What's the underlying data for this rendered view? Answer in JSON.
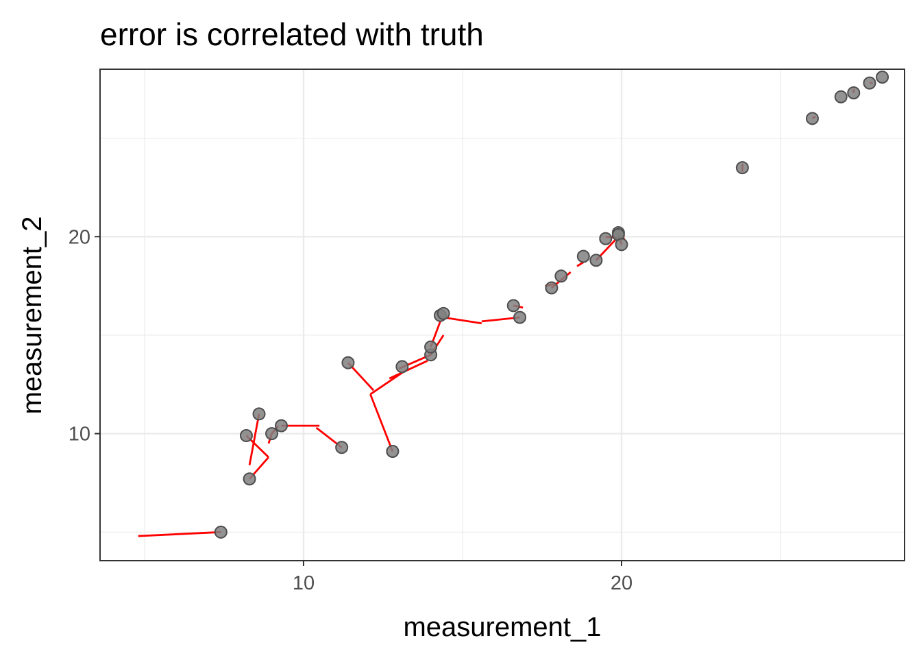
{
  "chart_data": {
    "type": "scatter",
    "title": "error is correlated with truth",
    "xlabel": "measurement_1",
    "ylabel": "measurement_2",
    "xlim": [
      3.6,
      28.9
    ],
    "ylim": [
      3.55,
      28.5
    ],
    "x_major_ticks": [
      10,
      20
    ],
    "y_major_ticks": [
      10,
      20
    ],
    "x_minor_ticks": [
      5,
      15,
      25
    ],
    "y_minor_ticks": [
      5,
      15,
      25
    ],
    "x_tick_labels": [
      "10",
      "20"
    ],
    "y_tick_labels": [
      "10",
      "20"
    ],
    "grid": true,
    "point_color": "#808080",
    "segment_color": "#ff0000",
    "points": [
      {
        "x": 7.4,
        "y": 5.0
      },
      {
        "x": 8.2,
        "y": 9.9
      },
      {
        "x": 8.3,
        "y": 7.7
      },
      {
        "x": 8.6,
        "y": 11.0
      },
      {
        "x": 9.0,
        "y": 10.0
      },
      {
        "x": 9.3,
        "y": 10.4
      },
      {
        "x": 11.2,
        "y": 9.3
      },
      {
        "x": 11.4,
        "y": 13.6
      },
      {
        "x": 12.8,
        "y": 9.1
      },
      {
        "x": 13.1,
        "y": 13.4
      },
      {
        "x": 14.0,
        "y": 14.0
      },
      {
        "x": 14.0,
        "y": 14.4
      },
      {
        "x": 14.3,
        "y": 16.0
      },
      {
        "x": 14.4,
        "y": 16.1
      },
      {
        "x": 16.6,
        "y": 16.5
      },
      {
        "x": 16.8,
        "y": 15.9
      },
      {
        "x": 17.8,
        "y": 17.4
      },
      {
        "x": 18.1,
        "y": 18.0
      },
      {
        "x": 18.8,
        "y": 19.0
      },
      {
        "x": 19.2,
        "y": 18.8
      },
      {
        "x": 19.5,
        "y": 19.9
      },
      {
        "x": 19.9,
        "y": 20.2
      },
      {
        "x": 19.9,
        "y": 20.1
      },
      {
        "x": 20.0,
        "y": 19.6
      },
      {
        "x": 23.8,
        "y": 23.5
      },
      {
        "x": 26.0,
        "y": 26.0
      },
      {
        "x": 26.9,
        "y": 27.1
      },
      {
        "x": 27.3,
        "y": 27.3
      },
      {
        "x": 27.8,
        "y": 27.8
      },
      {
        "x": 28.2,
        "y": 28.1
      }
    ],
    "segments": [
      {
        "x1": 7.4,
        "y1": 5.0,
        "x2": 4.8,
        "y2": 4.8
      },
      {
        "x1": 8.2,
        "y1": 9.9,
        "x2": 8.9,
        "y2": 8.8
      },
      {
        "x1": 8.3,
        "y1": 7.7,
        "x2": 8.9,
        "y2": 8.8
      },
      {
        "x1": 8.6,
        "y1": 11.0,
        "x2": 8.3,
        "y2": 8.4
      },
      {
        "x1": 9.0,
        "y1": 10.0,
        "x2": 9.2,
        "y2": 10.4
      },
      {
        "x1": 9.0,
        "y1": 10.0,
        "x2": 8.9,
        "y2": 9.5
      },
      {
        "x1": 9.3,
        "y1": 10.4,
        "x2": 10.5,
        "y2": 10.4
      },
      {
        "x1": 11.2,
        "y1": 9.3,
        "x2": 10.4,
        "y2": 10.3
      },
      {
        "x1": 11.4,
        "y1": 13.6,
        "x2": 12.2,
        "y2": 12.2
      },
      {
        "x1": 12.8,
        "y1": 9.1,
        "x2": 12.1,
        "y2": 12.0
      },
      {
        "x1": 12.1,
        "y1": 12.0,
        "x2": 13.2,
        "y2": 13.2
      },
      {
        "x1": 12.7,
        "y1": 12.8,
        "x2": 13.9,
        "y2": 13.7
      },
      {
        "x1": 14.0,
        "y1": 14.0,
        "x2": 13.0,
        "y2": 13.3
      },
      {
        "x1": 14.0,
        "y1": 14.4,
        "x2": 14.3,
        "y2": 15.7
      },
      {
        "x1": 14.0,
        "y1": 14.0,
        "x2": 14.4,
        "y2": 15.0
      },
      {
        "x1": 14.4,
        "y1": 15.9,
        "x2": 15.6,
        "y2": 15.6
      },
      {
        "x1": 16.8,
        "y1": 15.9,
        "x2": 15.6,
        "y2": 15.7
      },
      {
        "x1": 16.6,
        "y1": 16.5,
        "x2": 16.9,
        "y2": 16.4
      },
      {
        "x1": 17.8,
        "y1": 17.4,
        "x2": 18.4,
        "y2": 18.2
      },
      {
        "x1": 17.6,
        "y1": 17.5,
        "x2": 17.9,
        "y2": 17.6
      },
      {
        "x1": 18.6,
        "y1": 18.5,
        "x2": 18.8,
        "y2": 18.7
      },
      {
        "x1": 19.2,
        "y1": 18.8,
        "x2": 19.9,
        "y2": 20.0
      },
      {
        "x1": 19.5,
        "y1": 20.0,
        "x2": 20.1,
        "y2": 19.9
      },
      {
        "x1": 19.9,
        "y1": 20.2,
        "x2": 20.0,
        "y2": 19.6
      },
      {
        "x1": 23.8,
        "y1": 23.3,
        "x2": 23.8,
        "y2": 23.7
      },
      {
        "x1": 26.0,
        "y1": 26.0,
        "x2": 26.1,
        "y2": 26.1
      },
      {
        "x1": 27.3,
        "y1": 27.3,
        "x2": 27.3,
        "y2": 27.5
      },
      {
        "x1": 27.8,
        "y1": 27.8,
        "x2": 27.9,
        "y2": 27.8
      }
    ]
  }
}
